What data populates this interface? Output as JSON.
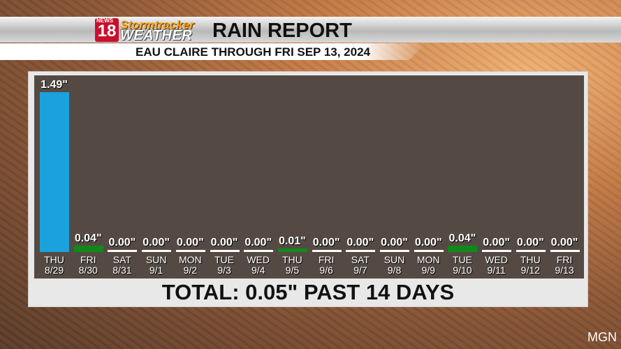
{
  "header": {
    "logo_text": "NEWS 18 abc Stormtracker WEATHER",
    "title": "RAIN REPORT",
    "subtitle": "EAU CLAIRE THROUGH FRI SEP 13, 2024"
  },
  "total": "TOTAL: 0.05\" PAST 14 DAYS",
  "watermark": "MGN",
  "colors": {
    "large": "#1ba1dd",
    "small": "#0f8a1a",
    "zero": "#ffffff"
  },
  "chart_data": {
    "type": "bar",
    "unit": "inches",
    "categories": [
      [
        "THU",
        "8/29"
      ],
      [
        "FRI",
        "8/30"
      ],
      [
        "SAT",
        "8/31"
      ],
      [
        "SUN",
        "9/1"
      ],
      [
        "MON",
        "9/2"
      ],
      [
        "TUE",
        "9/3"
      ],
      [
        "WED",
        "9/4"
      ],
      [
        "THU",
        "9/5"
      ],
      [
        "FRI",
        "9/6"
      ],
      [
        "SAT",
        "9/7"
      ],
      [
        "SUN",
        "9/8"
      ],
      [
        "MON",
        "9/9"
      ],
      [
        "TUE",
        "9/10"
      ],
      [
        "WED",
        "9/11"
      ],
      [
        "THU",
        "9/12"
      ],
      [
        "FRI",
        "9/13"
      ]
    ],
    "values": [
      1.49,
      0.04,
      0.0,
      0.0,
      0.0,
      0.0,
      0.0,
      0.01,
      0.0,
      0.0,
      0.0,
      0.0,
      0.04,
      0.0,
      0.0,
      0.0
    ],
    "labels": [
      "1.49\"",
      "0.04\"",
      "0.00\"",
      "0.00\"",
      "0.00\"",
      "0.00\"",
      "0.00\"",
      "0.01\"",
      "0.00\"",
      "0.00\"",
      "0.00\"",
      "0.00\"",
      "0.04\"",
      "0.00\"",
      "0.00\"",
      "0.00\""
    ]
  }
}
